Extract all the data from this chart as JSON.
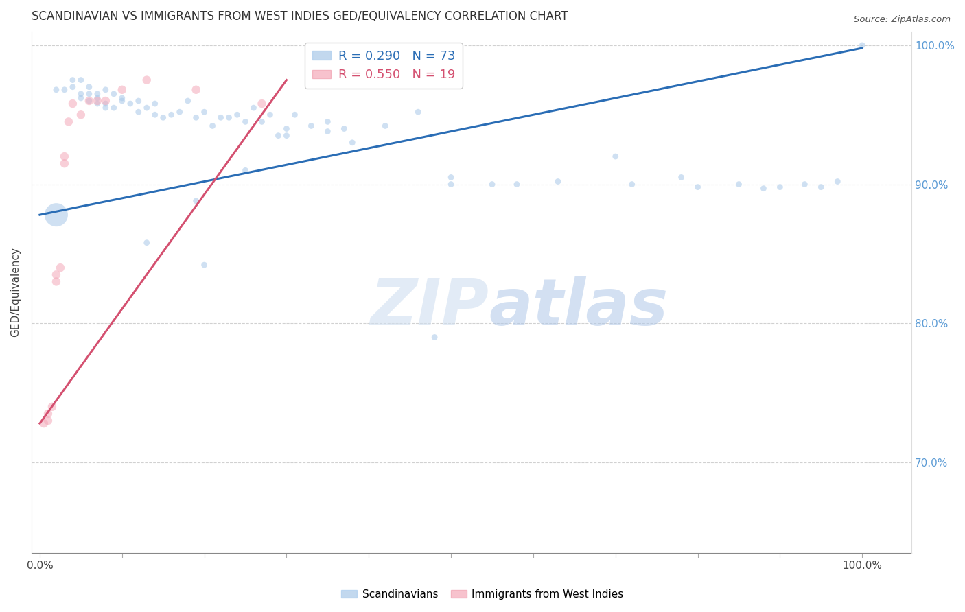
{
  "title": "SCANDINAVIAN VS IMMIGRANTS FROM WEST INDIES GED/EQUIVALENCY CORRELATION CHART",
  "source": "Source: ZipAtlas.com",
  "ylabel": "GED/Equivalency",
  "watermark": "ZIPatlas",
  "blue_R": 0.29,
  "blue_N": 73,
  "pink_R": 0.55,
  "pink_N": 19,
  "blue_label": "Scandinavians",
  "pink_label": "Immigrants from West Indies",
  "blue_color": "#a8c8e8",
  "pink_color": "#f4a8b8",
  "blue_line_color": "#2a6db5",
  "pink_line_color": "#d45070",
  "ytick_labels": [
    "70.0%",
    "80.0%",
    "90.0%",
    "100.0%"
  ],
  "ytick_values": [
    0.7,
    0.8,
    0.9,
    1.0
  ],
  "xlim": [
    -0.01,
    1.06
  ],
  "ylim": [
    0.635,
    1.01
  ],
  "blue_x": [
    0.02,
    0.03,
    0.04,
    0.04,
    0.05,
    0.05,
    0.05,
    0.06,
    0.06,
    0.06,
    0.07,
    0.07,
    0.07,
    0.08,
    0.08,
    0.08,
    0.09,
    0.09,
    0.1,
    0.1,
    0.11,
    0.12,
    0.12,
    0.13,
    0.14,
    0.14,
    0.15,
    0.16,
    0.17,
    0.18,
    0.19,
    0.2,
    0.21,
    0.22,
    0.23,
    0.24,
    0.25,
    0.26,
    0.27,
    0.28,
    0.29,
    0.3,
    0.31,
    0.33,
    0.35,
    0.37,
    0.5,
    0.5,
    0.55,
    0.58,
    0.63,
    0.7,
    0.72,
    0.78,
    0.8,
    0.85,
    0.88,
    0.9,
    0.93,
    0.95,
    0.97,
    1.0,
    0.13,
    0.19,
    0.25,
    0.3,
    0.35,
    0.38,
    0.42,
    0.46,
    0.2,
    0.48,
    0.02
  ],
  "blue_y": [
    0.968,
    0.968,
    0.97,
    0.975,
    0.962,
    0.965,
    0.975,
    0.96,
    0.965,
    0.97,
    0.958,
    0.962,
    0.965,
    0.955,
    0.958,
    0.968,
    0.955,
    0.965,
    0.962,
    0.96,
    0.958,
    0.952,
    0.96,
    0.955,
    0.95,
    0.958,
    0.948,
    0.95,
    0.952,
    0.96,
    0.948,
    0.952,
    0.942,
    0.948,
    0.948,
    0.95,
    0.945,
    0.955,
    0.945,
    0.95,
    0.935,
    0.94,
    0.95,
    0.942,
    0.945,
    0.94,
    0.9,
    0.905,
    0.9,
    0.9,
    0.902,
    0.92,
    0.9,
    0.905,
    0.898,
    0.9,
    0.897,
    0.898,
    0.9,
    0.898,
    0.902,
    1.0,
    0.858,
    0.888,
    0.91,
    0.935,
    0.938,
    0.93,
    0.942,
    0.952,
    0.842,
    0.79,
    0.878
  ],
  "blue_sizes": [
    40,
    40,
    40,
    40,
    40,
    40,
    40,
    40,
    40,
    40,
    40,
    40,
    40,
    40,
    40,
    40,
    40,
    40,
    40,
    40,
    40,
    40,
    40,
    40,
    40,
    40,
    40,
    40,
    40,
    40,
    40,
    40,
    40,
    40,
    40,
    40,
    40,
    40,
    40,
    40,
    40,
    40,
    40,
    40,
    40,
    40,
    40,
    40,
    40,
    40,
    40,
    40,
    40,
    40,
    40,
    40,
    40,
    40,
    40,
    40,
    40,
    40,
    40,
    40,
    40,
    40,
    40,
    40,
    40,
    40,
    40,
    40,
    600
  ],
  "pink_x": [
    0.005,
    0.01,
    0.01,
    0.015,
    0.02,
    0.02,
    0.025,
    0.03,
    0.03,
    0.035,
    0.04,
    0.05,
    0.06,
    0.07,
    0.08,
    0.1,
    0.13,
    0.19,
    0.27
  ],
  "pink_y": [
    0.728,
    0.73,
    0.735,
    0.74,
    0.83,
    0.835,
    0.84,
    0.915,
    0.92,
    0.945,
    0.958,
    0.95,
    0.96,
    0.96,
    0.96,
    0.968,
    0.975,
    0.968,
    0.958
  ],
  "pink_sizes": [
    80,
    80,
    80,
    80,
    80,
    80,
    80,
    80,
    80,
    80,
    80,
    80,
    80,
    80,
    80,
    80,
    80,
    80,
    80
  ],
  "blue_trend_x": [
    0.0,
    1.0
  ],
  "blue_trend_y": [
    0.878,
    0.998
  ],
  "pink_trend_x": [
    0.0,
    0.3
  ],
  "pink_trend_y": [
    0.728,
    0.975
  ]
}
